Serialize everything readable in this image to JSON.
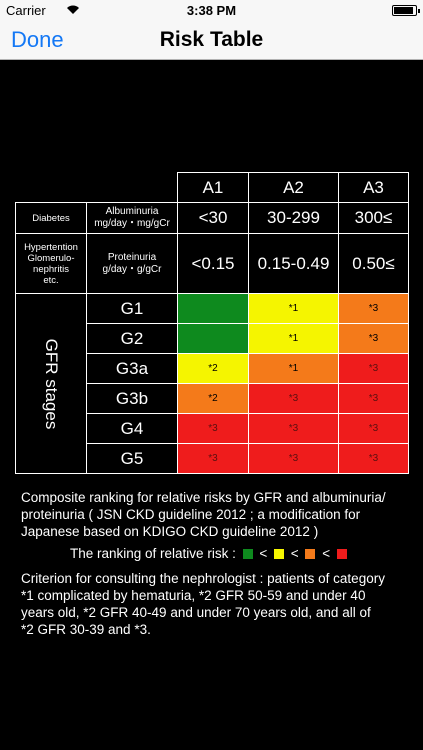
{
  "status_bar": {
    "carrier": "Carrier",
    "time": "3:38 PM",
    "battery_level": 0.9
  },
  "nav": {
    "done_label": "Done",
    "title": "Risk Table"
  },
  "table": {
    "columns": [
      "A1",
      "A2",
      "A3"
    ],
    "diabetes": {
      "label": "Diabetes",
      "measure": "Albuminuria",
      "unit": "mg/day・mg/gCr",
      "ranges": [
        "<30",
        "30-299",
        "300≤"
      ]
    },
    "other": {
      "label": "Hypertention\nGlomerulo-\nnephritis\netc.",
      "measure": "Proteinuria",
      "unit": "g/day・g/gCr",
      "ranges": [
        "<0.15",
        "0.15-0.49",
        "0.50≤"
      ]
    },
    "gfr_label": "GFR stages",
    "rows": [
      {
        "grade": "G1",
        "cells": [
          {
            "color": "#0e8a1e",
            "mark": ""
          },
          {
            "color": "#f5f500",
            "mark": "*1"
          },
          {
            "color": "#f47a1a",
            "mark": "*3"
          }
        ]
      },
      {
        "grade": "G2",
        "cells": [
          {
            "color": "#0e8a1e",
            "mark": ""
          },
          {
            "color": "#f5f500",
            "mark": "*1"
          },
          {
            "color": "#f47a1a",
            "mark": "*3"
          }
        ]
      },
      {
        "grade": "G3a",
        "cells": [
          {
            "color": "#f5f500",
            "mark": "*2"
          },
          {
            "color": "#f47a1a",
            "mark": "*1"
          },
          {
            "color": "#ef1c1c",
            "mark": "*3"
          }
        ]
      },
      {
        "grade": "G3b",
        "cells": [
          {
            "color": "#f47a1a",
            "mark": "*2"
          },
          {
            "color": "#ef1c1c",
            "mark": "*3"
          },
          {
            "color": "#ef1c1c",
            "mark": "*3"
          }
        ]
      },
      {
        "grade": "G4",
        "cells": [
          {
            "color": "#ef1c1c",
            "mark": "*3"
          },
          {
            "color": "#ef1c1c",
            "mark": "*3"
          },
          {
            "color": "#ef1c1c",
            "mark": "*3"
          }
        ]
      },
      {
        "grade": "G5",
        "cells": [
          {
            "color": "#ef1c1c",
            "mark": "*3"
          },
          {
            "color": "#ef1c1c",
            "mark": "*3"
          },
          {
            "color": "#ef1c1c",
            "mark": "*3"
          }
        ]
      }
    ]
  },
  "notes": {
    "composite": "Composite ranking for relative risks by GFR and albuminuria/\nproteinuria ( JSN CKD guideline 2012 ; a modification for\nJapanese based on  KDIGO CKD guideline 2012 )",
    "ranking_label": "The ranking of relative risk :",
    "ranking_sep": "<",
    "ranking_colors": [
      "#0e8a1e",
      "#f5f500",
      "#f47a1a",
      "#ef1c1c"
    ],
    "criterion": "Criterion for consulting the nephrologist : patients of category\n*1 complicated by hematuria, *2 GFR 50-59 and under 40\nyears old, *2  GFR 40-49 and under 70 years old, and all of\n*2 GFR 30-39 and *3."
  }
}
